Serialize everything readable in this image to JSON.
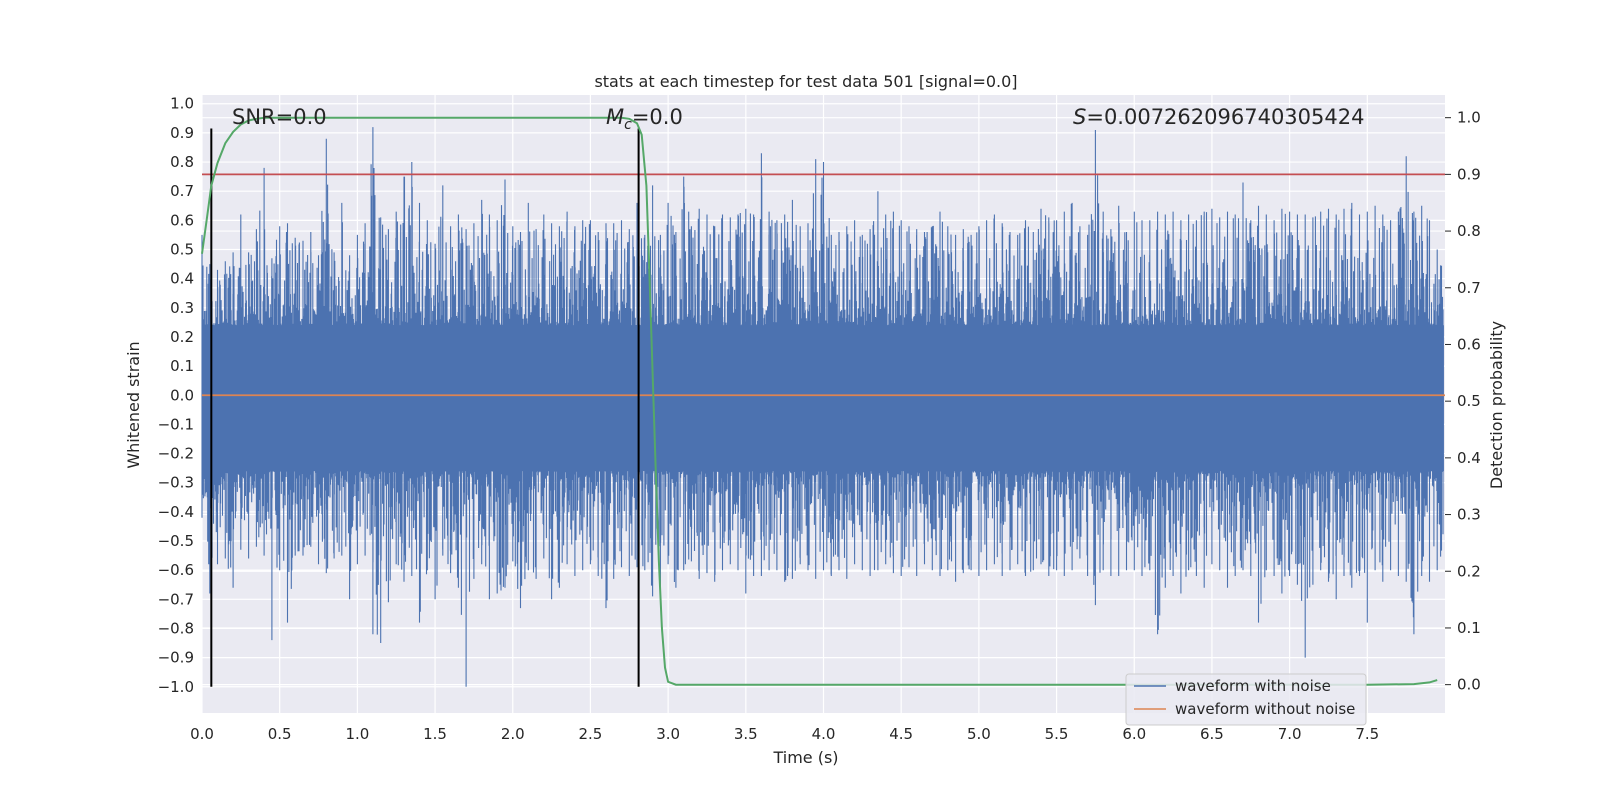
{
  "chart_data": {
    "type": "line",
    "title": "stats at each timestep for test data 501 [signal=0.0]",
    "xlabel": "Time (s)",
    "ylabel": "Whitened strain",
    "y2label": "Detection probability",
    "xlim": [
      0.0,
      8.0
    ],
    "ylim": [
      -1.09,
      1.03
    ],
    "y2lim": [
      -0.05,
      1.04
    ],
    "xticks": [
      "0.0",
      "0.5",
      "1.0",
      "1.5",
      "2.0",
      "2.5",
      "3.0",
      "3.5",
      "4.0",
      "4.5",
      "5.0",
      "5.5",
      "6.0",
      "6.5",
      "7.0",
      "7.5"
    ],
    "xtick_values": [
      0.0,
      0.5,
      1.0,
      1.5,
      2.0,
      2.5,
      3.0,
      3.5,
      4.0,
      4.5,
      5.0,
      5.5,
      6.0,
      6.5,
      7.0,
      7.5
    ],
    "yticks": [
      "1.0",
      "0.9",
      "0.8",
      "0.7",
      "0.6",
      "0.5",
      "0.4",
      "0.3",
      "0.2",
      "0.1",
      "0.0",
      "-0.1",
      "-0.2",
      "-0.3",
      "-0.4",
      "-0.5",
      "-0.6",
      "-0.7",
      "-0.8",
      "-0.9",
      "-1.0"
    ],
    "ytick_values": [
      1.0,
      0.9,
      0.8,
      0.7,
      0.6,
      0.5,
      0.4,
      0.3,
      0.2,
      0.1,
      0.0,
      -0.1,
      -0.2,
      -0.3,
      -0.4,
      -0.5,
      -0.6,
      -0.7,
      -0.8,
      -0.9,
      -1.0
    ],
    "y2ticks": [
      "1.0",
      "0.9",
      "0.8",
      "0.7",
      "0.6",
      "0.5",
      "0.4",
      "0.3",
      "0.2",
      "0.1",
      "0.0"
    ],
    "y2tick_values": [
      1.0,
      0.9,
      0.8,
      0.7,
      0.6,
      0.5,
      0.4,
      0.3,
      0.2,
      0.1,
      0.0
    ],
    "annotations": {
      "snr": "SNR=0.0",
      "mc_symbol": "M",
      "mc_sub": "c",
      "mc_value": "=0.0",
      "s_symbol": "S",
      "s_value": "=0.007262096740305424"
    },
    "vertical_markers": [
      0.06,
      2.81
    ],
    "threshold": {
      "y2": 0.9,
      "color": "#c44e52"
    },
    "series": [
      {
        "name": "waveform with noise",
        "color": "#4c72b0",
        "axis": "left",
        "style": "dense noise",
        "envelope_points": [
          [
            0.0,
            -0.42,
            0.55
          ],
          [
            0.05,
            -0.68,
            0.45
          ],
          [
            0.1,
            -0.58,
            0.43
          ],
          [
            0.15,
            -0.56,
            0.46
          ],
          [
            0.2,
            -0.66,
            0.49
          ],
          [
            0.25,
            -0.53,
            0.62
          ],
          [
            0.3,
            -0.56,
            0.49
          ],
          [
            0.35,
            -0.52,
            0.57
          ],
          [
            0.4,
            -0.55,
            0.78
          ],
          [
            0.45,
            -0.84,
            0.47
          ],
          [
            0.5,
            -0.6,
            0.58
          ],
          [
            0.55,
            -0.78,
            0.59
          ],
          [
            0.6,
            -0.55,
            0.54
          ],
          [
            0.65,
            -0.55,
            0.53
          ],
          [
            0.7,
            -0.52,
            0.56
          ],
          [
            0.75,
            -0.58,
            0.48
          ],
          [
            0.8,
            -0.61,
            0.88
          ],
          [
            0.85,
            -0.56,
            0.49
          ],
          [
            0.9,
            -0.55,
            0.66
          ],
          [
            0.95,
            -0.7,
            0.48
          ],
          [
            1.0,
            -0.58,
            0.55
          ],
          [
            1.05,
            -0.55,
            0.59
          ],
          [
            1.1,
            -0.82,
            0.92
          ],
          [
            1.15,
            -0.85,
            0.61
          ],
          [
            1.2,
            -0.71,
            0.57
          ],
          [
            1.25,
            -0.58,
            0.63
          ],
          [
            1.3,
            -0.64,
            0.75
          ],
          [
            1.35,
            -0.62,
            0.8
          ],
          [
            1.4,
            -0.78,
            0.66
          ],
          [
            1.45,
            -0.6,
            0.6
          ],
          [
            1.5,
            -0.7,
            0.52
          ],
          [
            1.55,
            -0.55,
            0.72
          ],
          [
            1.6,
            -0.61,
            0.58
          ],
          [
            1.65,
            -0.66,
            0.62
          ],
          [
            1.7,
            -1.0,
            0.57
          ],
          [
            1.75,
            -0.63,
            0.59
          ],
          [
            1.8,
            -0.58,
            0.67
          ],
          [
            1.85,
            -0.7,
            0.62
          ],
          [
            1.9,
            -0.68,
            0.6
          ],
          [
            1.95,
            -0.66,
            0.74
          ],
          [
            2.0,
            -0.57,
            0.58
          ],
          [
            2.05,
            -0.73,
            0.56
          ],
          [
            2.1,
            -0.6,
            0.66
          ],
          [
            2.15,
            -0.63,
            0.57
          ],
          [
            2.2,
            -0.56,
            0.62
          ],
          [
            2.25,
            -0.7,
            0.59
          ],
          [
            2.3,
            -0.66,
            0.58
          ],
          [
            2.35,
            -0.58,
            0.63
          ],
          [
            2.4,
            -0.62,
            0.58
          ],
          [
            2.45,
            -0.6,
            0.6
          ],
          [
            2.5,
            -0.58,
            0.6
          ],
          [
            2.55,
            -0.62,
            0.56
          ],
          [
            2.6,
            -0.73,
            0.59
          ],
          [
            2.65,
            -0.63,
            0.59
          ],
          [
            2.7,
            -0.59,
            0.6
          ],
          [
            2.75,
            -0.62,
            0.57
          ],
          [
            2.8,
            -0.59,
            0.66
          ],
          [
            2.85,
            -0.6,
            0.55
          ],
          [
            2.9,
            -0.69,
            0.72
          ],
          [
            2.95,
            -0.67,
            0.55
          ],
          [
            3.0,
            -0.58,
            0.66
          ],
          [
            3.05,
            -0.66,
            0.56
          ],
          [
            3.1,
            -0.6,
            0.75
          ],
          [
            3.15,
            -0.57,
            0.58
          ],
          [
            3.2,
            -0.63,
            0.64
          ],
          [
            3.25,
            -0.61,
            0.62
          ],
          [
            3.3,
            -0.64,
            0.58
          ],
          [
            3.35,
            -0.6,
            0.62
          ],
          [
            3.4,
            -0.58,
            0.61
          ],
          [
            3.45,
            -0.6,
            0.62
          ],
          [
            3.5,
            -0.68,
            0.64
          ],
          [
            3.55,
            -0.62,
            0.62
          ],
          [
            3.6,
            -0.62,
            0.83
          ],
          [
            3.65,
            -0.6,
            0.63
          ],
          [
            3.7,
            -0.6,
            0.6
          ],
          [
            3.75,
            -0.64,
            0.62
          ],
          [
            3.8,
            -0.63,
            0.67
          ],
          [
            3.85,
            -0.58,
            0.58
          ],
          [
            3.9,
            -0.6,
            0.59
          ],
          [
            3.95,
            -0.63,
            0.81
          ],
          [
            4.0,
            -0.6,
            0.8
          ],
          [
            4.05,
            -0.62,
            0.55
          ],
          [
            4.1,
            -0.6,
            0.56
          ],
          [
            4.15,
            -0.63,
            0.58
          ],
          [
            4.2,
            -0.58,
            0.6
          ],
          [
            4.25,
            -0.6,
            0.55
          ],
          [
            4.3,
            -0.62,
            0.57
          ],
          [
            4.35,
            -0.6,
            0.7
          ],
          [
            4.4,
            -0.58,
            0.62
          ],
          [
            4.45,
            -0.61,
            0.63
          ],
          [
            4.5,
            -0.62,
            0.6
          ],
          [
            4.55,
            -0.59,
            0.58
          ],
          [
            4.6,
            -0.62,
            0.57
          ],
          [
            4.65,
            -0.58,
            0.56
          ],
          [
            4.7,
            -0.6,
            0.58
          ],
          [
            4.75,
            -0.62,
            0.63
          ],
          [
            4.8,
            -0.6,
            0.58
          ],
          [
            4.85,
            -0.64,
            0.55
          ],
          [
            4.9,
            -0.61,
            0.57
          ],
          [
            4.95,
            -0.6,
            0.55
          ],
          [
            5.0,
            -0.62,
            0.58
          ],
          [
            5.05,
            -0.6,
            0.6
          ],
          [
            5.1,
            -0.58,
            0.62
          ],
          [
            5.15,
            -0.62,
            0.59
          ],
          [
            5.2,
            -0.6,
            0.56
          ],
          [
            5.25,
            -0.58,
            0.55
          ],
          [
            5.3,
            -0.62,
            0.6
          ],
          [
            5.35,
            -0.6,
            0.56
          ],
          [
            5.4,
            -0.58,
            0.64
          ],
          [
            5.45,
            -0.62,
            0.61
          ],
          [
            5.5,
            -0.6,
            0.6
          ],
          [
            5.55,
            -0.62,
            0.63
          ],
          [
            5.6,
            -0.6,
            0.66
          ],
          [
            5.65,
            -0.56,
            0.58
          ],
          [
            5.7,
            -0.62,
            0.55
          ],
          [
            5.75,
            -0.72,
            0.91
          ],
          [
            5.8,
            -0.6,
            0.63
          ],
          [
            5.85,
            -0.62,
            0.57
          ],
          [
            5.9,
            -0.62,
            0.65
          ],
          [
            5.95,
            -0.6,
            0.56
          ],
          [
            6.0,
            -0.6,
            0.63
          ],
          [
            6.05,
            -0.62,
            0.6
          ],
          [
            6.1,
            -0.6,
            0.6
          ],
          [
            6.15,
            -0.82,
            0.63
          ],
          [
            6.2,
            -0.66,
            0.62
          ],
          [
            6.25,
            -0.62,
            0.63
          ],
          [
            6.3,
            -0.68,
            0.6
          ],
          [
            6.35,
            -0.6,
            0.62
          ],
          [
            6.4,
            -0.62,
            0.6
          ],
          [
            6.45,
            -0.66,
            0.63
          ],
          [
            6.5,
            -0.58,
            0.64
          ],
          [
            6.55,
            -0.6,
            0.61
          ],
          [
            6.6,
            -0.66,
            0.63
          ],
          [
            6.65,
            -0.62,
            0.62
          ],
          [
            6.7,
            -0.6,
            0.73
          ],
          [
            6.75,
            -0.62,
            0.6
          ],
          [
            6.8,
            -0.78,
            0.65
          ],
          [
            6.85,
            -0.6,
            0.62
          ],
          [
            6.9,
            -0.62,
            0.6
          ],
          [
            6.95,
            -0.68,
            0.64
          ],
          [
            7.0,
            -0.62,
            0.63
          ],
          [
            7.05,
            -0.65,
            0.62
          ],
          [
            7.1,
            -0.9,
            0.62
          ],
          [
            7.15,
            -0.65,
            0.61
          ],
          [
            7.2,
            -0.6,
            0.63
          ],
          [
            7.25,
            -0.64,
            0.64
          ],
          [
            7.3,
            -0.7,
            0.62
          ],
          [
            7.35,
            -0.62,
            0.64
          ],
          [
            7.4,
            -0.66,
            0.66
          ],
          [
            7.45,
            -0.62,
            0.62
          ],
          [
            7.5,
            -0.78,
            0.63
          ],
          [
            7.55,
            -0.6,
            0.65
          ],
          [
            7.6,
            -0.64,
            0.62
          ],
          [
            7.65,
            -0.6,
            0.6
          ],
          [
            7.7,
            -0.62,
            0.63
          ],
          [
            7.75,
            -0.64,
            0.82
          ],
          [
            7.8,
            -0.82,
            0.63
          ],
          [
            7.85,
            -0.62,
            0.65
          ],
          [
            7.9,
            -0.64,
            0.6
          ],
          [
            7.95,
            -0.6,
            0.5
          ]
        ]
      },
      {
        "name": "waveform without noise",
        "color": "#dd8452",
        "axis": "left",
        "x": [
          0.0,
          8.0
        ],
        "y": [
          0.0,
          0.0
        ]
      },
      {
        "name": "detection probability",
        "color": "#55a868",
        "axis": "right",
        "x": [
          0.0,
          0.03,
          0.06,
          0.1,
          0.15,
          0.2,
          0.25,
          0.3,
          0.35,
          0.4,
          0.5,
          1.0,
          1.5,
          2.0,
          2.5,
          2.7,
          2.75,
          2.8,
          2.83,
          2.86,
          2.88,
          2.9,
          2.92,
          2.94,
          2.96,
          2.98,
          3.0,
          3.05,
          3.1,
          3.5,
          4.0,
          5.0,
          6.0,
          7.0,
          7.5,
          7.8,
          7.9,
          7.95
        ],
        "y": [
          0.76,
          0.82,
          0.88,
          0.92,
          0.955,
          0.975,
          0.988,
          0.995,
          0.998,
          1.0,
          1.0,
          1.0,
          1.0,
          1.0,
          1.0,
          1.0,
          0.998,
          0.99,
          0.97,
          0.88,
          0.72,
          0.55,
          0.38,
          0.22,
          0.1,
          0.03,
          0.005,
          0.0,
          0.0,
          0.0,
          0.0,
          0.0,
          0.0,
          0.0,
          0.0,
          0.001,
          0.004,
          0.008
        ]
      }
    ],
    "legend": {
      "placement": "lower-right",
      "entries": [
        {
          "label": "waveform with noise",
          "color": "#4c72b0"
        },
        {
          "label": "waveform without noise",
          "color": "#dd8452"
        }
      ]
    },
    "colors": {
      "plot_background": "#eaeaf2",
      "grid": "#ffffff",
      "marker_line": "#000000"
    }
  }
}
